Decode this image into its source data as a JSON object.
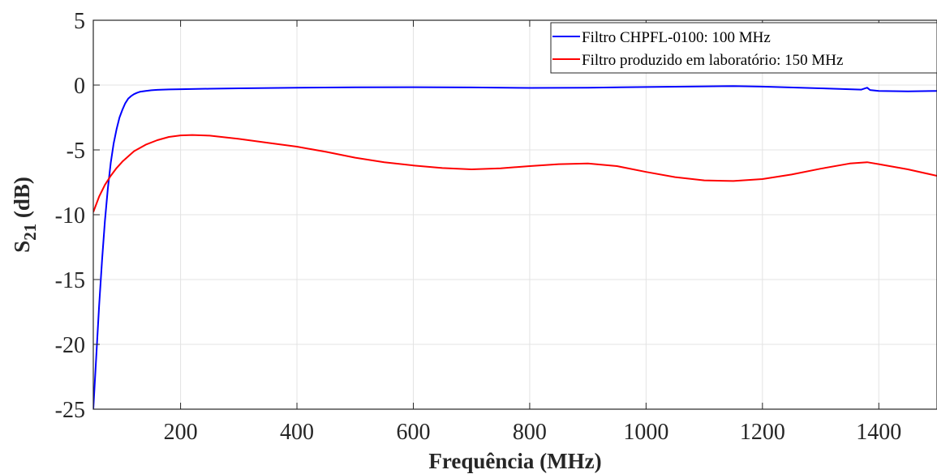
{
  "chart_data": {
    "type": "line",
    "xlabel": "Frequência (MHz)",
    "ylabel": {
      "base": "S",
      "subscript": "21",
      "suffix": " (dB)"
    },
    "xlim": [
      50,
      1500
    ],
    "ylim": [
      -25,
      5
    ],
    "xticks": [
      200,
      400,
      600,
      800,
      1000,
      1200,
      1400
    ],
    "yticks": [
      5,
      0,
      -5,
      -10,
      -15,
      -20,
      -25
    ],
    "grid": true,
    "legend_position": "top-right",
    "series": [
      {
        "name": "Filtro CHPFL-0100: 100 MHz",
        "color": "#0000ff",
        "x": [
          50,
          55,
          60,
          65,
          70,
          75,
          80,
          85,
          90,
          95,
          100,
          105,
          110,
          115,
          120,
          125,
          130,
          140,
          150,
          160,
          180,
          200,
          250,
          300,
          400,
          500,
          600,
          700,
          800,
          900,
          1000,
          1100,
          1150,
          1200,
          1300,
          1370,
          1380,
          1385,
          1400,
          1450,
          1500
        ],
        "y": [
          -25.0,
          -21.0,
          -17.0,
          -13.5,
          -10.5,
          -8.0,
          -6.0,
          -4.5,
          -3.4,
          -2.5,
          -1.9,
          -1.4,
          -1.05,
          -0.85,
          -0.7,
          -0.6,
          -0.52,
          -0.45,
          -0.4,
          -0.37,
          -0.34,
          -0.32,
          -0.28,
          -0.25,
          -0.2,
          -0.17,
          -0.16,
          -0.18,
          -0.22,
          -0.2,
          -0.15,
          -0.1,
          -0.08,
          -0.12,
          -0.25,
          -0.35,
          -0.2,
          -0.38,
          -0.45,
          -0.48,
          -0.45
        ]
      },
      {
        "name": "Filtro produzido em laboratório: 150 MHz",
        "color": "#ff0000",
        "x": [
          50,
          60,
          70,
          80,
          90,
          100,
          120,
          140,
          160,
          180,
          200,
          220,
          250,
          300,
          350,
          400,
          450,
          500,
          550,
          600,
          650,
          700,
          750,
          800,
          850,
          900,
          950,
          1000,
          1050,
          1100,
          1150,
          1200,
          1250,
          1300,
          1350,
          1380,
          1400,
          1450,
          1500
        ],
        "y": [
          -9.8,
          -8.6,
          -7.7,
          -7.0,
          -6.4,
          -5.9,
          -5.1,
          -4.6,
          -4.25,
          -4.0,
          -3.88,
          -3.85,
          -3.9,
          -4.15,
          -4.45,
          -4.75,
          -5.15,
          -5.6,
          -5.95,
          -6.2,
          -6.4,
          -6.5,
          -6.42,
          -6.25,
          -6.1,
          -6.05,
          -6.25,
          -6.7,
          -7.1,
          -7.35,
          -7.4,
          -7.25,
          -6.9,
          -6.45,
          -6.05,
          -5.95,
          -6.1,
          -6.5,
          -7.0
        ]
      }
    ]
  }
}
